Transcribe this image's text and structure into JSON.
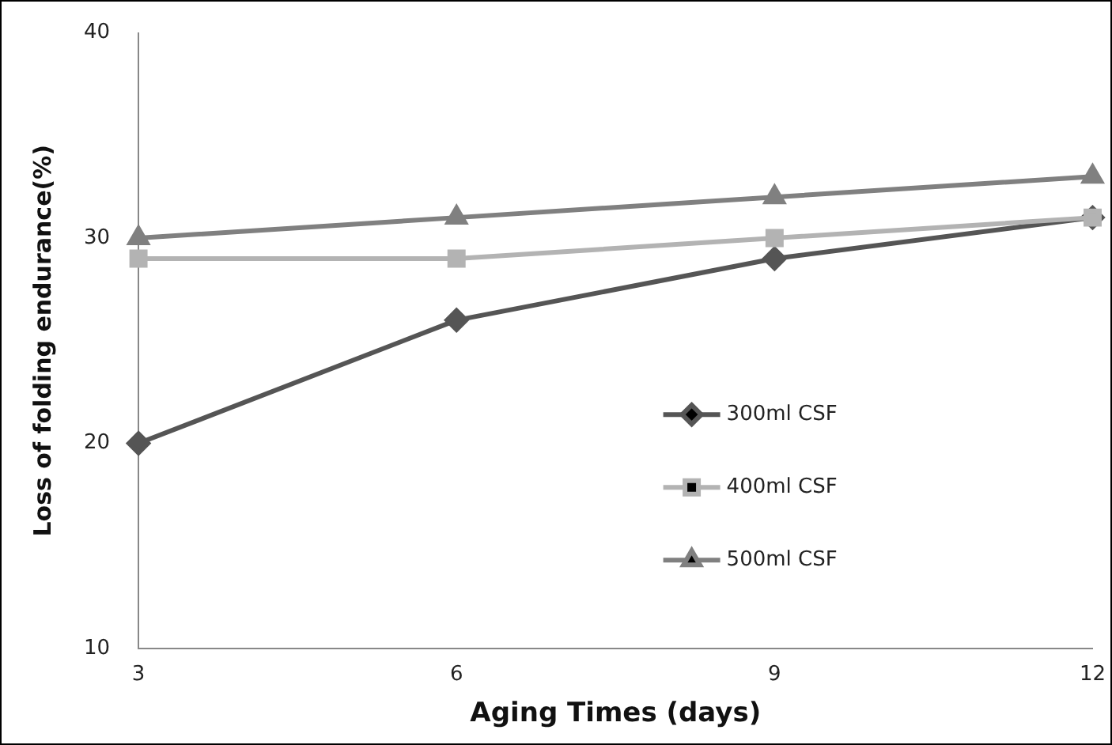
{
  "chart_data": {
    "type": "line",
    "xlabel": "Aging Times (days)",
    "ylabel": "Loss of folding endurance(%)",
    "categories": [
      "3",
      "6",
      "9",
      "12"
    ],
    "ylim": [
      10,
      40
    ],
    "yticks": [
      10,
      20,
      30,
      40
    ],
    "grid": false,
    "legend": "right",
    "line_style": "solid",
    "series": [
      {
        "name": "300ml CSF",
        "color": "#555555",
        "marker": "diamond",
        "values": [
          20,
          26,
          29,
          31
        ]
      },
      {
        "name": "400ml CSF",
        "color": "#b3b3b3",
        "marker": "square",
        "values": [
          29,
          29,
          30,
          31
        ]
      },
      {
        "name": "500ml CSF",
        "color": "#808080",
        "marker": "triangle",
        "values": [
          30,
          31,
          32,
          33
        ]
      }
    ]
  }
}
